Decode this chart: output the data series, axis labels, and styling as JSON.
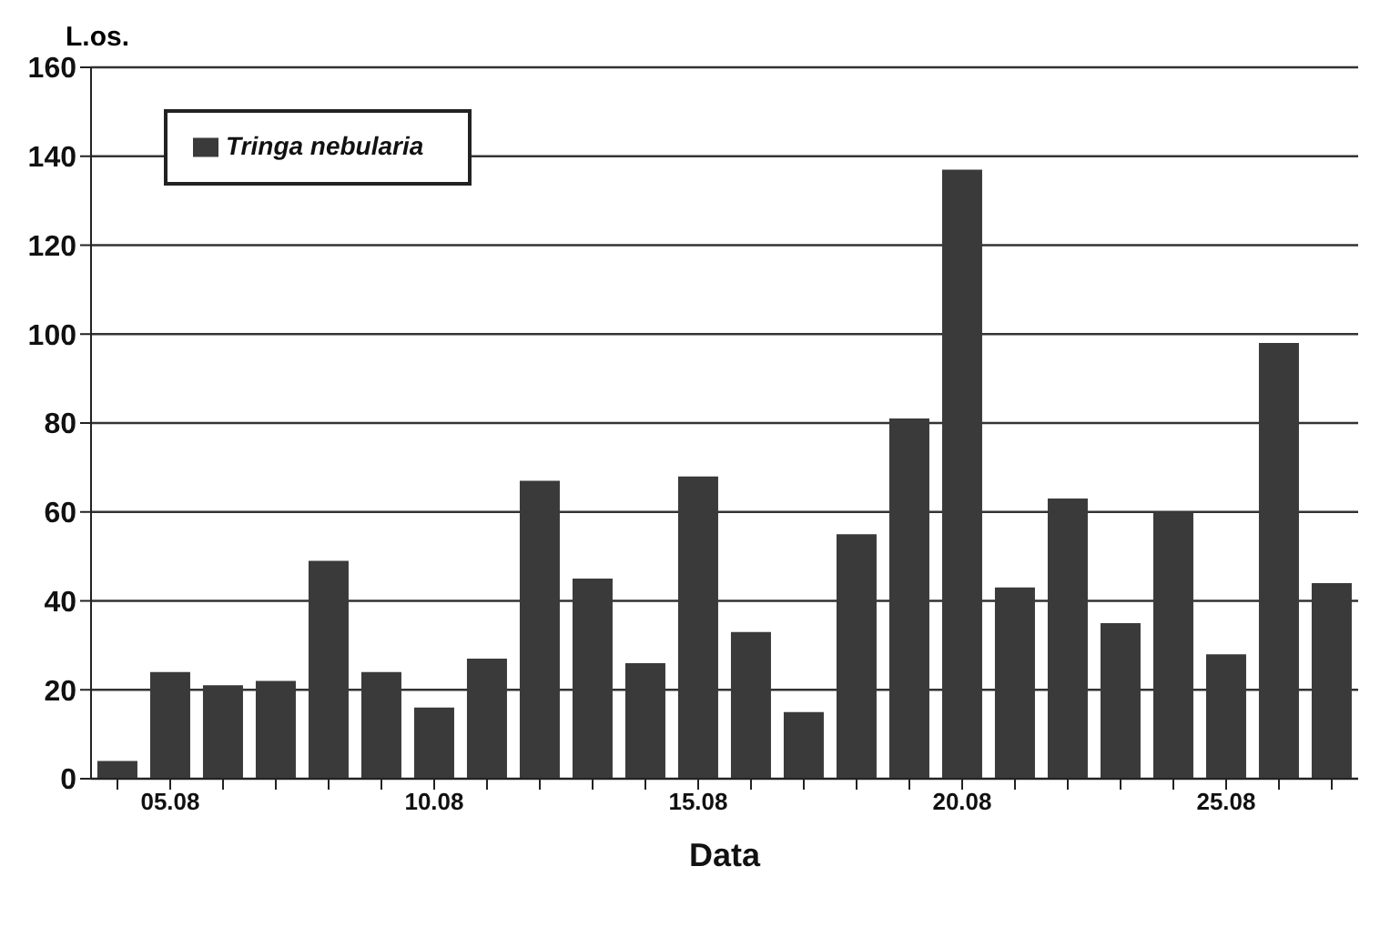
{
  "chart_data": {
    "type": "bar",
    "ylabel": "L.os.",
    "xlabel": "Data",
    "categories": [
      null,
      "05.08",
      null,
      null,
      null,
      null,
      "10.08",
      null,
      null,
      null,
      null,
      "15.08",
      null,
      null,
      null,
      null,
      "20.08",
      null,
      null,
      null,
      null,
      "25.08",
      null,
      null
    ],
    "series": [
      {
        "name": "Tringa nebularia",
        "color": "#3a3a3a",
        "values": [
          4,
          24,
          21,
          22,
          49,
          24,
          16,
          27,
          67,
          45,
          26,
          68,
          33,
          15,
          55,
          81,
          137,
          43,
          63,
          35,
          60,
          28,
          98,
          44
        ]
      }
    ],
    "ylim": [
      0,
      160
    ],
    "yticks": [
      0,
      20,
      40,
      60,
      80,
      100,
      120,
      140,
      160
    ],
    "grid": "y",
    "legend": "top left"
  }
}
